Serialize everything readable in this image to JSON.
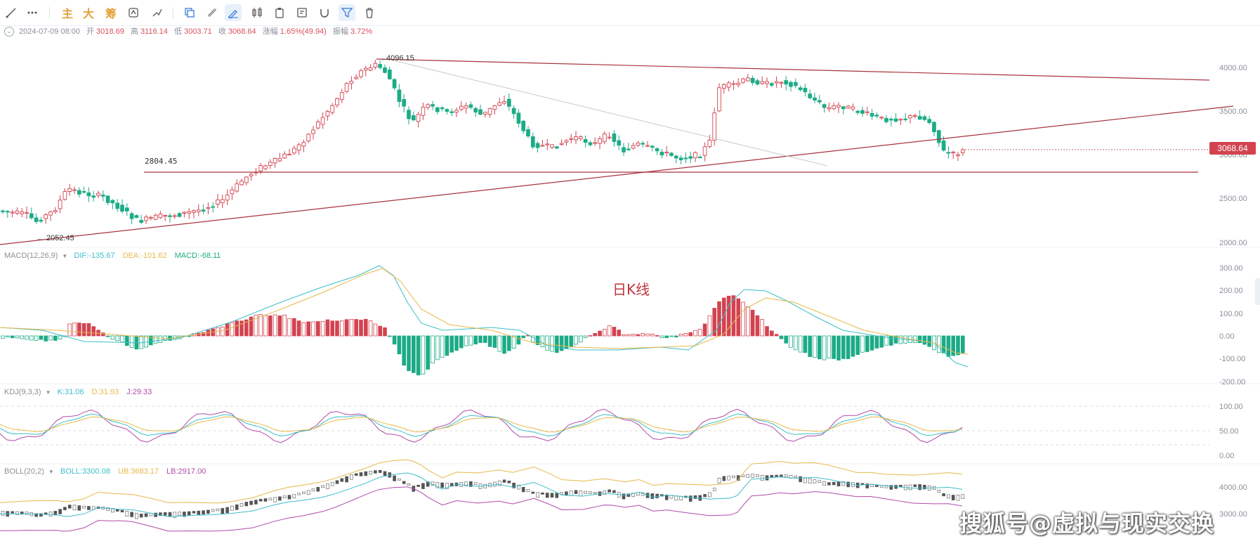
{
  "toolbar": {
    "icons": [
      "trend-line-icon",
      "more-dots-icon",
      "main-indicator",
      "large-order",
      "chip-distribution",
      "copy-icon",
      "draw-icon",
      "ruler-icon",
      "brush-icon",
      "candle-style-icon",
      "clipboard-icon",
      "note-icon",
      "magnet-icon",
      "filter-icon",
      "delete-icon"
    ],
    "text_buttons": [
      "主",
      "大",
      "筹"
    ]
  },
  "info": {
    "datetime": "2024-07-09 08:00",
    "open_label": "开",
    "open": "3018.69",
    "high_label": "高",
    "high": "3116.14",
    "low_label": "低",
    "low": "3003.71",
    "close_label": "收",
    "close": "3068.64",
    "change_label": "涨幅",
    "change": "1.65%(49.94)",
    "amp_label": "振幅",
    "amp": "3.72%"
  },
  "main_chart": {
    "annotation_high": "4096.15",
    "annotation_low": "2052.45",
    "support_label": "2804.45",
    "current_price": "3068.64",
    "yaxis": [
      "4000.00",
      "3500.00",
      "3000.00",
      "2500.00",
      "2000.00"
    ],
    "series_label": "日K线",
    "colors": {
      "up": "#d2434f",
      "down": "#1cab86",
      "line": "#a8323d"
    }
  },
  "macd": {
    "name": "MACD(12,26,9)",
    "dif": "DIF:-135.67",
    "dea": "DEA:-101.62",
    "macd": "MACD:-68.11",
    "yaxis": [
      "300.00",
      "200.00",
      "100.00",
      "0.00",
      "-100.00",
      "-200.00"
    ],
    "colors": {
      "dif": "#3cbfc9",
      "dea": "#e8b84a",
      "macd": "#1cab86"
    }
  },
  "kdj": {
    "name": "KDJ(9,3,3)",
    "k": "K:31.06",
    "d": "D:31.93",
    "j": "J:29.33",
    "yaxis": [
      "100.00",
      "50.00",
      "0.00"
    ],
    "colors": {
      "k": "#3cbfc9",
      "d": "#e8b84a",
      "j": "#b04ba8"
    }
  },
  "boll": {
    "name": "BOLL(20,2)",
    "mid": "BOLL:3300.08",
    "ub": "UB:3683.17",
    "lb": "LB:2917.00",
    "yaxis": [
      "4000.00",
      "3000.00"
    ],
    "colors": {
      "mid": "#3cbfc9",
      "ub": "#e8b84a",
      "lb": "#b04ba8"
    }
  },
  "watermark": "搜狐号@虚拟与现实交换"
}
